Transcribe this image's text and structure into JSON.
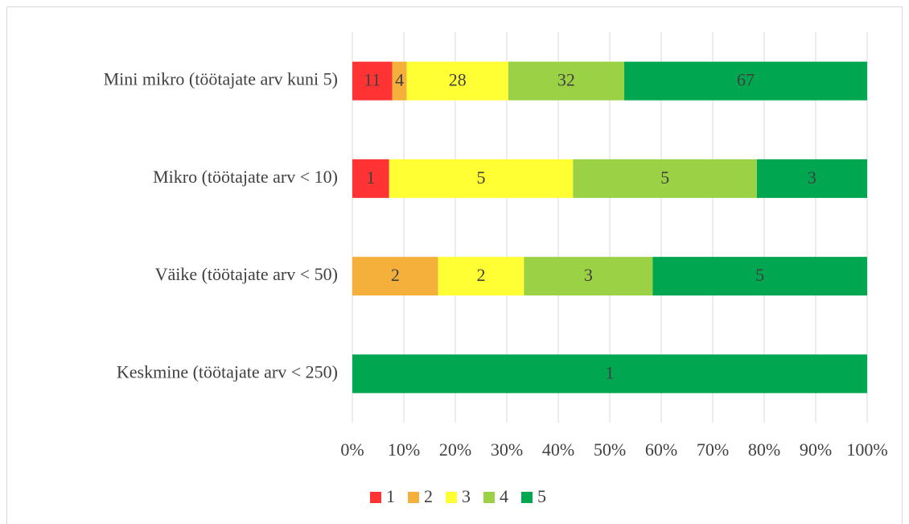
{
  "chart_data": {
    "type": "bar",
    "orientation": "horizontal",
    "stack": "percent",
    "categories": [
      "Mini mikro (töötajate arv kuni 5)",
      "Mikro (töötajate arv < 10)",
      "Väike (töötajate arv < 50)",
      "Keskmine (töötajate arv < 250)"
    ],
    "series": [
      {
        "name": "1",
        "color": "#ff3333",
        "values": [
          11,
          1,
          0,
          0
        ]
      },
      {
        "name": "2",
        "color": "#f5b03c",
        "values": [
          4,
          0,
          2,
          0
        ]
      },
      {
        "name": "3",
        "color": "#ffff33",
        "values": [
          28,
          5,
          2,
          0
        ]
      },
      {
        "name": "4",
        "color": "#9bd245",
        "values": [
          32,
          5,
          3,
          0
        ]
      },
      {
        "name": "5",
        "color": "#00a650",
        "values": [
          67,
          3,
          5,
          1
        ]
      }
    ],
    "xlim": [
      0,
      100
    ],
    "xticks": [
      {
        "value": 0,
        "label": "0%"
      },
      {
        "value": 10,
        "label": "10%"
      },
      {
        "value": 20,
        "label": "20%"
      },
      {
        "value": 30,
        "label": "30%"
      },
      {
        "value": 40,
        "label": "40%"
      },
      {
        "value": 50,
        "label": "50%"
      },
      {
        "value": 60,
        "label": "60%"
      },
      {
        "value": 70,
        "label": "70%"
      },
      {
        "value": 80,
        "label": "80%"
      },
      {
        "value": 90,
        "label": "90%"
      },
      {
        "value": 100,
        "label": "100%"
      }
    ],
    "grid": true,
    "legend": "bottom"
  }
}
